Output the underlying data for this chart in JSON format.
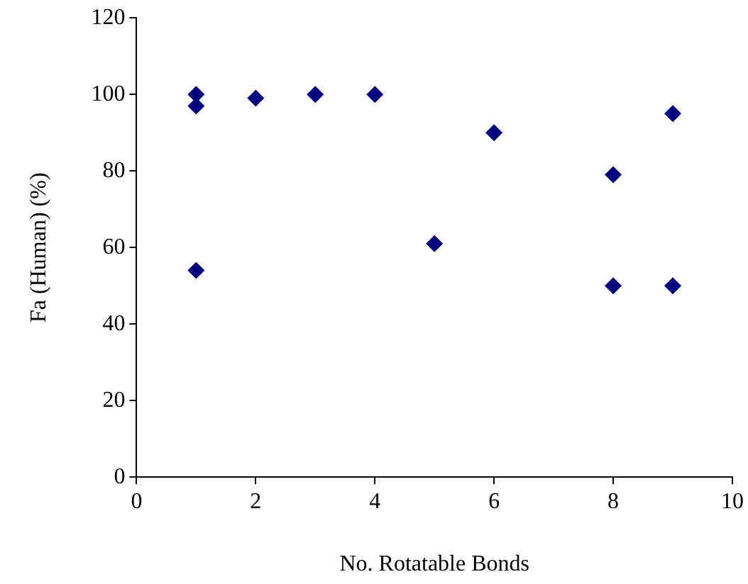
{
  "chart_data": {
    "type": "scatter",
    "xlabel": "No. Rotatable Bonds",
    "ylabel": "Fa (Human) (%)",
    "x": [
      1,
      1,
      1,
      2,
      3,
      4,
      5,
      6,
      8,
      8,
      9,
      9
    ],
    "series": [
      {
        "color": "#000080",
        "values": [
          100,
          97,
          54,
          99,
          100,
          100,
          61,
          90,
          79,
          50,
          95,
          50
        ]
      }
    ],
    "xlim": [
      0,
      10
    ],
    "xticks": [
      0,
      2,
      4,
      6,
      8,
      10
    ],
    "ylim": [
      0,
      120
    ],
    "yticks": [
      0,
      20,
      40,
      60,
      80,
      100,
      120
    ],
    "marker": "diamond",
    "grid": false,
    "legend": false
  }
}
